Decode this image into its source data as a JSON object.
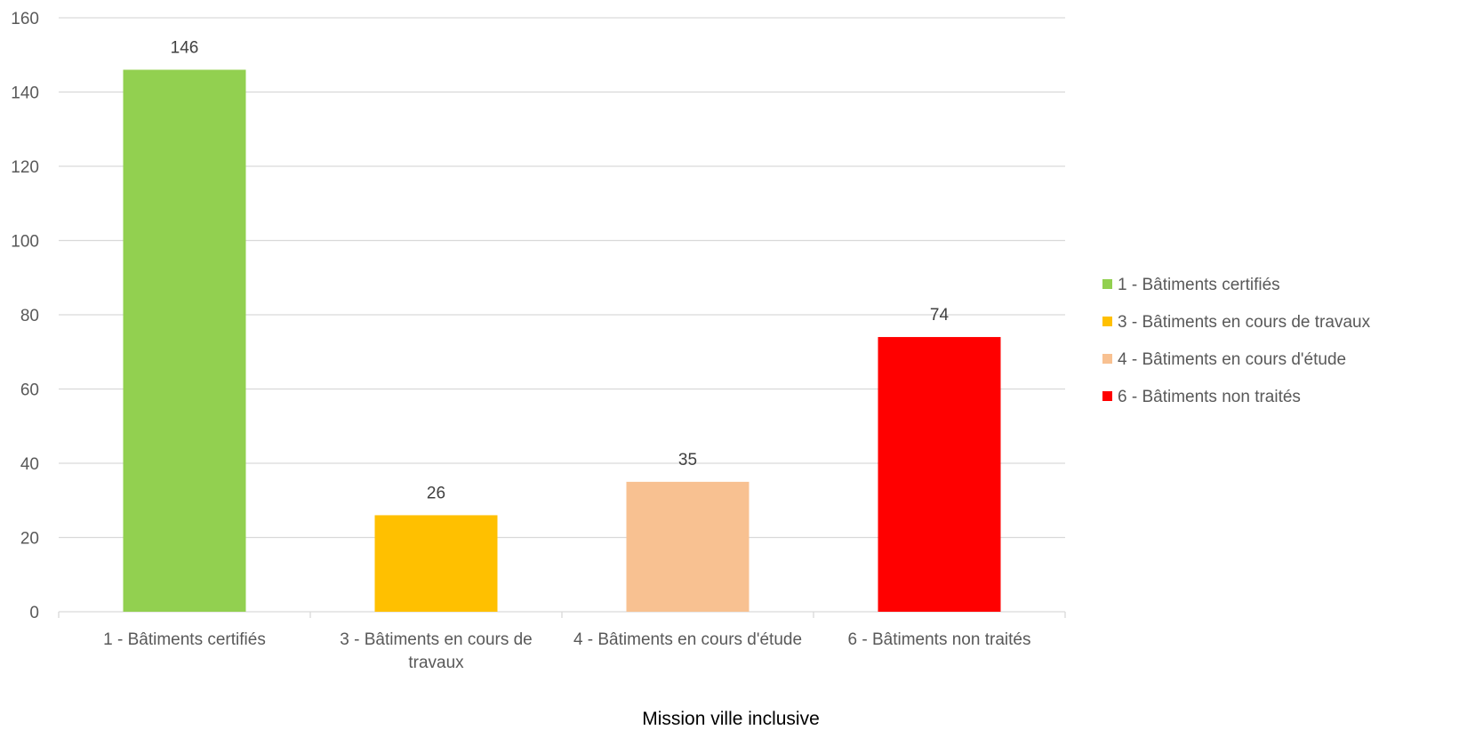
{
  "chart_data": {
    "type": "bar",
    "title": "",
    "xlabel": "Mission ville inclusive",
    "ylabel": "",
    "ylim": [
      0,
      160
    ],
    "yticks": [
      0,
      20,
      40,
      60,
      80,
      100,
      120,
      140,
      160
    ],
    "grid": true,
    "legend_position": "right",
    "categories": [
      [
        "1 - Bâtiments certifiés"
      ],
      [
        "3 - Bâtiments en cours de",
        "travaux"
      ],
      [
        "4 - Bâtiments en cours d'étude"
      ],
      [
        "6 - Bâtiments non traités"
      ]
    ],
    "values": [
      146,
      26,
      35,
      74
    ],
    "data_labels": [
      "146",
      "26",
      "35",
      "74"
    ],
    "colors": [
      "#92d050",
      "#ffc000",
      "#f8c191",
      "#ff0000"
    ],
    "legend": [
      {
        "label": "1 - Bâtiments certifiés",
        "color": "#92d050"
      },
      {
        "label": "3 - Bâtiments en cours de travaux",
        "color": "#ffc000"
      },
      {
        "label": "4 - Bâtiments en cours d'étude",
        "color": "#f8c191"
      },
      {
        "label": "6 - Bâtiments non traités",
        "color": "#ff0000"
      }
    ]
  }
}
